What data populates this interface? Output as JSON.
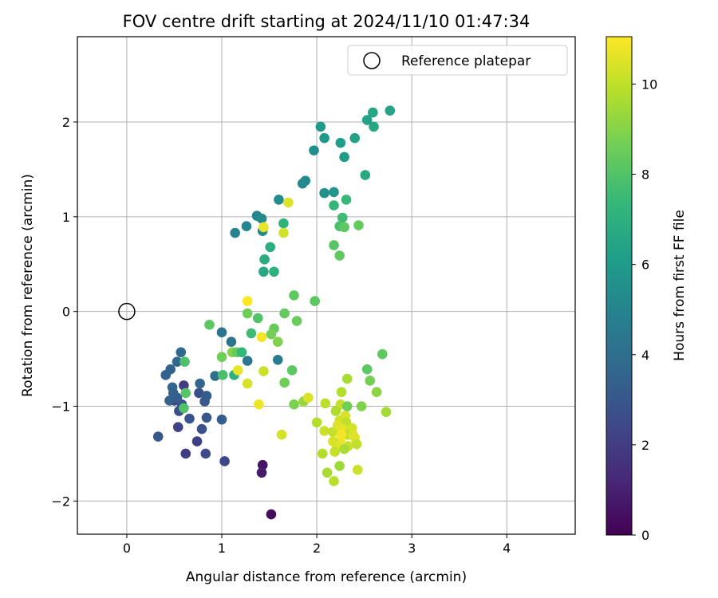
{
  "chart_data": {
    "type": "scatter",
    "title": "FOV centre drift starting at 2024/11/10 01:47:34",
    "xlabel": "Angular distance from reference (arcmin)",
    "ylabel": "Rotation from reference (arcmin)",
    "xlim": [
      -0.52,
      4.72
    ],
    "ylim": [
      -2.35,
      2.9
    ],
    "xticks": [
      0,
      1,
      2,
      3,
      4
    ],
    "yticks": [
      -2,
      -1,
      0,
      1,
      2
    ],
    "grid": true,
    "legend": {
      "position": "top-right",
      "label": "Reference platepar"
    },
    "reference_point": {
      "x": 0,
      "y": 0
    },
    "colorbar": {
      "label": "Hours from first FF file",
      "colormap": "viridis",
      "range": [
        0,
        11.05
      ],
      "ticks": [
        0,
        2,
        4,
        6,
        8,
        10
      ]
    },
    "colormap_stops": [
      "#440154",
      "#482878",
      "#3e4989",
      "#31688e",
      "#26828e",
      "#1f9e89",
      "#35b779",
      "#6ece58",
      "#b5de2b",
      "#fde725"
    ],
    "points": [
      [
        1.52,
        -2.14,
        0.3
      ],
      [
        1.43,
        -1.62,
        0.6
      ],
      [
        1.42,
        -1.7,
        0.8
      ],
      [
        0.62,
        -1.5,
        2.0
      ],
      [
        0.74,
        -1.37,
        2.1
      ],
      [
        1.03,
        -1.58,
        2.4
      ],
      [
        0.83,
        -1.5,
        2.5
      ],
      [
        0.54,
        -1.22,
        2.2
      ],
      [
        0.33,
        -1.32,
        3.0
      ],
      [
        0.66,
        -1.13,
        2.8
      ],
      [
        0.79,
        -1.24,
        2.7
      ],
      [
        0.5,
        -0.94,
        2.3
      ],
      [
        0.55,
        -1.05,
        2.6
      ],
      [
        0.58,
        -0.98,
        2.9
      ],
      [
        0.6,
        -0.78,
        1.9
      ],
      [
        0.76,
        -0.86,
        2.7
      ],
      [
        0.82,
        -0.95,
        3.1
      ],
      [
        0.84,
        -0.89,
        3.2
      ],
      [
        0.84,
        -1.12,
        3.0
      ],
      [
        1.0,
        -1.14,
        3.3
      ],
      [
        0.45,
        -0.94,
        3.4
      ],
      [
        0.48,
        -0.8,
        3.6
      ],
      [
        0.49,
        -0.86,
        3.5
      ],
      [
        0.53,
        -0.91,
        3.3
      ],
      [
        0.41,
        -0.67,
        3.4
      ],
      [
        0.46,
        -0.61,
        3.5
      ],
      [
        0.53,
        -0.53,
        3.7
      ],
      [
        0.57,
        -0.43,
        3.8
      ],
      [
        0.77,
        -0.76,
        3.6
      ],
      [
        0.93,
        -0.68,
        4.0
      ],
      [
        1.0,
        -0.22,
        4.3
      ],
      [
        1.1,
        -0.32,
        4.2
      ],
      [
        1.27,
        -0.52,
        4.4
      ],
      [
        1.59,
        -0.51,
        4.6
      ],
      [
        1.14,
        0.83,
        5.0
      ],
      [
        1.26,
        0.9,
        5.1
      ],
      [
        1.37,
        1.01,
        5.0
      ],
      [
        1.43,
        0.85,
        5.2
      ],
      [
        1.42,
        0.98,
        5.3
      ],
      [
        1.6,
        1.18,
        5.4
      ],
      [
        1.85,
        1.35,
        5.2
      ],
      [
        1.88,
        1.38,
        5.3
      ],
      [
        1.97,
        1.7,
        5.5
      ],
      [
        2.08,
        1.25,
        5.6
      ],
      [
        2.18,
        1.26,
        5.8
      ],
      [
        2.04,
        1.95,
        6.0
      ],
      [
        2.08,
        1.83,
        5.9
      ],
      [
        2.25,
        1.78,
        6.2
      ],
      [
        2.29,
        1.63,
        6.1
      ],
      [
        2.4,
        1.83,
        6.3
      ],
      [
        2.53,
        2.02,
        6.4
      ],
      [
        2.59,
        2.1,
        6.5
      ],
      [
        2.6,
        1.95,
        6.6
      ],
      [
        2.77,
        2.12,
        6.4
      ],
      [
        2.51,
        1.44,
        6.7
      ],
      [
        1.44,
        0.42,
        6.6
      ],
      [
        1.45,
        0.55,
        6.8
      ],
      [
        1.55,
        0.42,
        7.0
      ],
      [
        1.51,
        0.68,
        6.9
      ],
      [
        1.65,
        0.93,
        7.1
      ],
      [
        2.18,
        1.12,
        7.3
      ],
      [
        2.31,
        1.18,
        7.4
      ],
      [
        2.27,
        0.99,
        7.6
      ],
      [
        2.24,
        0.9,
        7.8
      ],
      [
        2.29,
        0.89,
        8.2
      ],
      [
        2.44,
        0.91,
        8.4
      ],
      [
        2.18,
        0.7,
        8.1
      ],
      [
        2.24,
        0.59,
        8.3
      ],
      [
        1.98,
        0.11,
        8.2
      ],
      [
        1.76,
        0.17,
        8.3
      ],
      [
        1.79,
        -0.1,
        8.5
      ],
      [
        1.66,
        -0.02,
        8.4
      ],
      [
        1.27,
        -0.02,
        8.6
      ],
      [
        1.38,
        -0.07,
        8.0
      ],
      [
        1.31,
        -0.23,
        7.6
      ],
      [
        1.55,
        -0.18,
        8.4
      ],
      [
        1.52,
        -0.24,
        8.7
      ],
      [
        1.59,
        -0.32,
        8.9
      ],
      [
        0.87,
        -0.14,
        8.2
      ],
      [
        1.0,
        -0.48,
        8.6
      ],
      [
        1.11,
        -0.43,
        9.0
      ],
      [
        1.16,
        -0.43,
        8.4
      ],
      [
        1.21,
        -0.43,
        7.3
      ],
      [
        1.13,
        -0.67,
        7.0
      ],
      [
        1.01,
        -0.67,
        7.8
      ],
      [
        0.61,
        -0.53,
        7.9
      ],
      [
        0.62,
        -0.86,
        8.1
      ],
      [
        0.6,
        -1.02,
        7.9
      ],
      [
        1.74,
        -0.62,
        8.2
      ],
      [
        1.66,
        -0.75,
        8.6
      ],
      [
        1.76,
        -0.98,
        8.8
      ],
      [
        1.86,
        -0.95,
        9.3
      ],
      [
        1.91,
        -0.91,
        10.4
      ],
      [
        2.53,
        -0.61,
        8.2
      ],
      [
        2.69,
        -0.45,
        8.3
      ],
      [
        2.56,
        -0.73,
        8.7
      ],
      [
        2.47,
        -1.0,
        8.9
      ],
      [
        2.63,
        -0.85,
        9.1
      ],
      [
        2.73,
        -1.06,
        9.5
      ],
      [
        2.32,
        -0.71,
        9.6
      ],
      [
        2.26,
        -0.85,
        9.8
      ],
      [
        2.25,
        -0.98,
        10.1
      ],
      [
        2.32,
        -1.0,
        8.6
      ],
      [
        2.2,
        -1.05,
        9.7
      ],
      [
        2.09,
        -0.97,
        9.9
      ],
      [
        2.0,
        -1.17,
        9.8
      ],
      [
        2.08,
        -1.26,
        10.2
      ],
      [
        2.17,
        -1.27,
        10.1
      ],
      [
        2.24,
        -1.15,
        10.3
      ],
      [
        2.3,
        -1.1,
        10.4
      ],
      [
        2.31,
        -1.17,
        10.0
      ],
      [
        2.22,
        -1.2,
        10.5
      ],
      [
        2.27,
        -1.24,
        10.6
      ],
      [
        2.33,
        -1.3,
        9.9
      ],
      [
        2.37,
        -1.23,
        10.3
      ],
      [
        2.4,
        -1.33,
        10.7
      ],
      [
        2.25,
        -1.35,
        10.8
      ],
      [
        2.21,
        -1.41,
        10.6
      ],
      [
        2.17,
        -1.37,
        10.4
      ],
      [
        2.33,
        -1.42,
        10.2
      ],
      [
        2.42,
        -1.4,
        10.0
      ],
      [
        2.29,
        -1.45,
        9.6
      ],
      [
        2.19,
        -1.48,
        10.1
      ],
      [
        2.06,
        -1.5,
        9.8
      ],
      [
        2.11,
        -1.7,
        9.6
      ],
      [
        2.18,
        -1.79,
        9.9
      ],
      [
        2.24,
        -1.63,
        9.4
      ],
      [
        2.43,
        -1.67,
        10.2
      ],
      [
        2.38,
        -1.3,
        10.5
      ],
      [
        2.26,
        -1.3,
        10.9
      ],
      [
        1.63,
        -1.3,
        10.3
      ],
      [
        1.39,
        -0.98,
        10.8
      ],
      [
        1.27,
        -0.76,
        10.4
      ],
      [
        1.17,
        -0.62,
        10.7
      ],
      [
        1.44,
        -0.63,
        10.2
      ],
      [
        1.42,
        -0.27,
        10.9
      ],
      [
        1.27,
        0.11,
        11.0
      ],
      [
        1.44,
        0.89,
        10.7
      ],
      [
        1.65,
        0.83,
        10.3
      ],
      [
        1.7,
        1.15,
        10.5
      ]
    ]
  }
}
